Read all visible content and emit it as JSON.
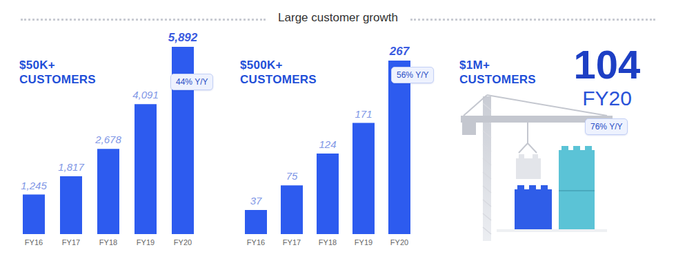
{
  "title": "Large customer growth",
  "chart_data": [
    {
      "type": "bar",
      "title": "$50K+ CUSTOMERS",
      "categories": [
        "FY16",
        "FY17",
        "FY18",
        "FY19",
        "FY20"
      ],
      "values": [
        1245,
        1817,
        2678,
        4091,
        5892
      ],
      "value_labels": [
        "1,245",
        "1,817",
        "2,678",
        "4,091",
        "5,892"
      ],
      "data_labels": true,
      "tick_labels": "x",
      "color": "#2d5bef",
      "annotations": [
        "44% Y/Y"
      ]
    },
    {
      "type": "bar",
      "title": "$500K+ CUSTOMERS",
      "categories": [
        "FY16",
        "FY17",
        "FY18",
        "FY19",
        "FY20"
      ],
      "values": [
        37,
        75,
        124,
        171,
        267
      ],
      "data_labels": true,
      "tick_labels": "x",
      "color": "#2d5bef",
      "annotations": [
        "56% Y/Y"
      ]
    }
  ],
  "highlight": {
    "title": "$1M+ CUSTOMERS",
    "value": 104,
    "period": "FY20",
    "annotation": "76% Y/Y"
  }
}
